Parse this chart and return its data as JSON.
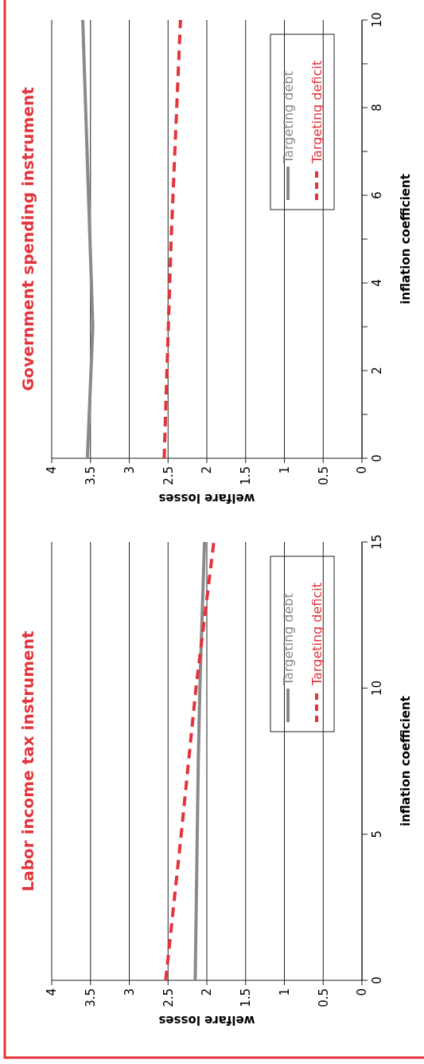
{
  "chart_data": [
    {
      "type": "line",
      "title": "Government spending instrument",
      "xlabel": "welfare losses",
      "ylabel": "inflation coefficient",
      "xlim": [
        4,
        0
      ],
      "xticks": [
        4,
        3.5,
        3,
        2.5,
        2,
        1.5,
        1,
        0.5,
        0
      ],
      "ylim": [
        0,
        10
      ],
      "yticks": [
        0,
        {
          "value": 1,
          "label": null
        },
        2,
        {
          "value": 3,
          "label": null
        },
        4,
        {
          "value": 5,
          "label": null
        },
        6,
        {
          "value": 7,
          "label": null
        },
        8,
        {
          "value": 9,
          "label": null
        },
        10
      ],
      "grid": "x",
      "legend": "top right",
      "series": [
        {
          "name": "Targeting debt",
          "color": "#8a8a8c",
          "x": [
            3.54,
            3.47,
            3.6
          ],
          "values": [
            0,
            3,
            10
          ]
        },
        {
          "name": "Targeting deficit",
          "color": "#e3343c",
          "line_style": "dashed",
          "x": [
            2.55,
            2.46,
            2.34
          ],
          "values": [
            0,
            5,
            10
          ]
        }
      ]
    },
    {
      "type": "line",
      "title": "Labor income tax instrument",
      "xlabel": "welfare losses",
      "ylabel": "inflation coefficient",
      "xlim": [
        4,
        0
      ],
      "xticks": [
        4,
        3.5,
        3,
        2.5,
        2,
        1.5,
        1,
        0.5,
        0
      ],
      "ylim": [
        0,
        15
      ],
      "yticks": [
        0,
        5,
        10,
        15
      ],
      "grid": "x",
      "legend": "top right",
      "series": [
        {
          "name": "Targeting debt",
          "color": "#8a8a8c",
          "x": [
            2.15,
            2.11,
            2.09,
            2.03
          ],
          "values": [
            0,
            7.5,
            10,
            15
          ]
        },
        {
          "name": "Targeting deficit",
          "color": "#e3343c",
          "line_style": "dashed",
          "x": [
            2.53,
            2.33,
            2.14,
            1.91
          ],
          "values": [
            0,
            5,
            10,
            15
          ]
        }
      ]
    }
  ]
}
